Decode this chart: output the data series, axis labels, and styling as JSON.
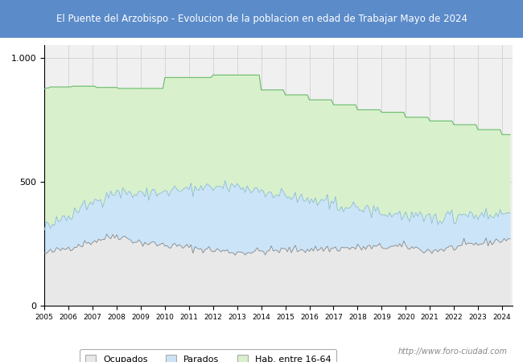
{
  "title": "El Puente del Arzobispo - Evolucion de la poblacion en edad de Trabajar Mayo de 2024",
  "title_bg_color": "#5b8bc9",
  "title_text_color": "#ffffff",
  "ylim": [
    0,
    1050
  ],
  "yticks": [
    0,
    500,
    1000
  ],
  "legend_labels": [
    "Ocupados",
    "Parados",
    "Hab. entre 16-64"
  ],
  "watermark": "http://www.foro-ciudad.com",
  "color_hab": "#d8f0cc",
  "color_parados": "#cce4f7",
  "color_ocupados": "#e8e8e8",
  "line_hab": "#66bb66",
  "line_parados": "#88bbdd",
  "line_ocupados": "#888888",
  "hab_steps": [
    875,
    878,
    878,
    882,
    882,
    882,
    882,
    882,
    882,
    882,
    882,
    882,
    882,
    882,
    885,
    885,
    885,
    885,
    885,
    885,
    885,
    885,
    885,
    885,
    885,
    885,
    880,
    880,
    880,
    880,
    880,
    880,
    880,
    880,
    880,
    880,
    880,
    876,
    876,
    876,
    876,
    876,
    876,
    876,
    876,
    876,
    876,
    876,
    876,
    876,
    876,
    876,
    876,
    876,
    876,
    876,
    876,
    876,
    876,
    876,
    920,
    920,
    920,
    920,
    920,
    920,
    920,
    920,
    920,
    920,
    920,
    920,
    920,
    920,
    920,
    920,
    920,
    920,
    920,
    920,
    920,
    920,
    920,
    920,
    930,
    930,
    930,
    930,
    930,
    930,
    930,
    930,
    930,
    930,
    930,
    930,
    930,
    930,
    930,
    930,
    930,
    930,
    930,
    930,
    930,
    930,
    930,
    930,
    870,
    870,
    870,
    870,
    870,
    870,
    870,
    870,
    870,
    870,
    870,
    870,
    850,
    850,
    850,
    850,
    850,
    850,
    850,
    850,
    850,
    850,
    850,
    850,
    830,
    830,
    830,
    830,
    830,
    830,
    830,
    830,
    830,
    830,
    830,
    830,
    810,
    810,
    810,
    810,
    810,
    810,
    810,
    810,
    810,
    810,
    810,
    810,
    790,
    790,
    790,
    790,
    790,
    790,
    790,
    790,
    790,
    790,
    790,
    790,
    780,
    780,
    780,
    780,
    780,
    780,
    780,
    780,
    780,
    780,
    780,
    780,
    760,
    760,
    760,
    760,
    760,
    760,
    760,
    760,
    760,
    760,
    760,
    760,
    745,
    745,
    745,
    745,
    745,
    745,
    745,
    745,
    745,
    745,
    745,
    745,
    730,
    730,
    730,
    730,
    730,
    730,
    730,
    730,
    730,
    730,
    730,
    730,
    710,
    710,
    710,
    710,
    710,
    710,
    710,
    710,
    710,
    710,
    710,
    710,
    690,
    690,
    690,
    690,
    690
  ],
  "n_months": 233
}
